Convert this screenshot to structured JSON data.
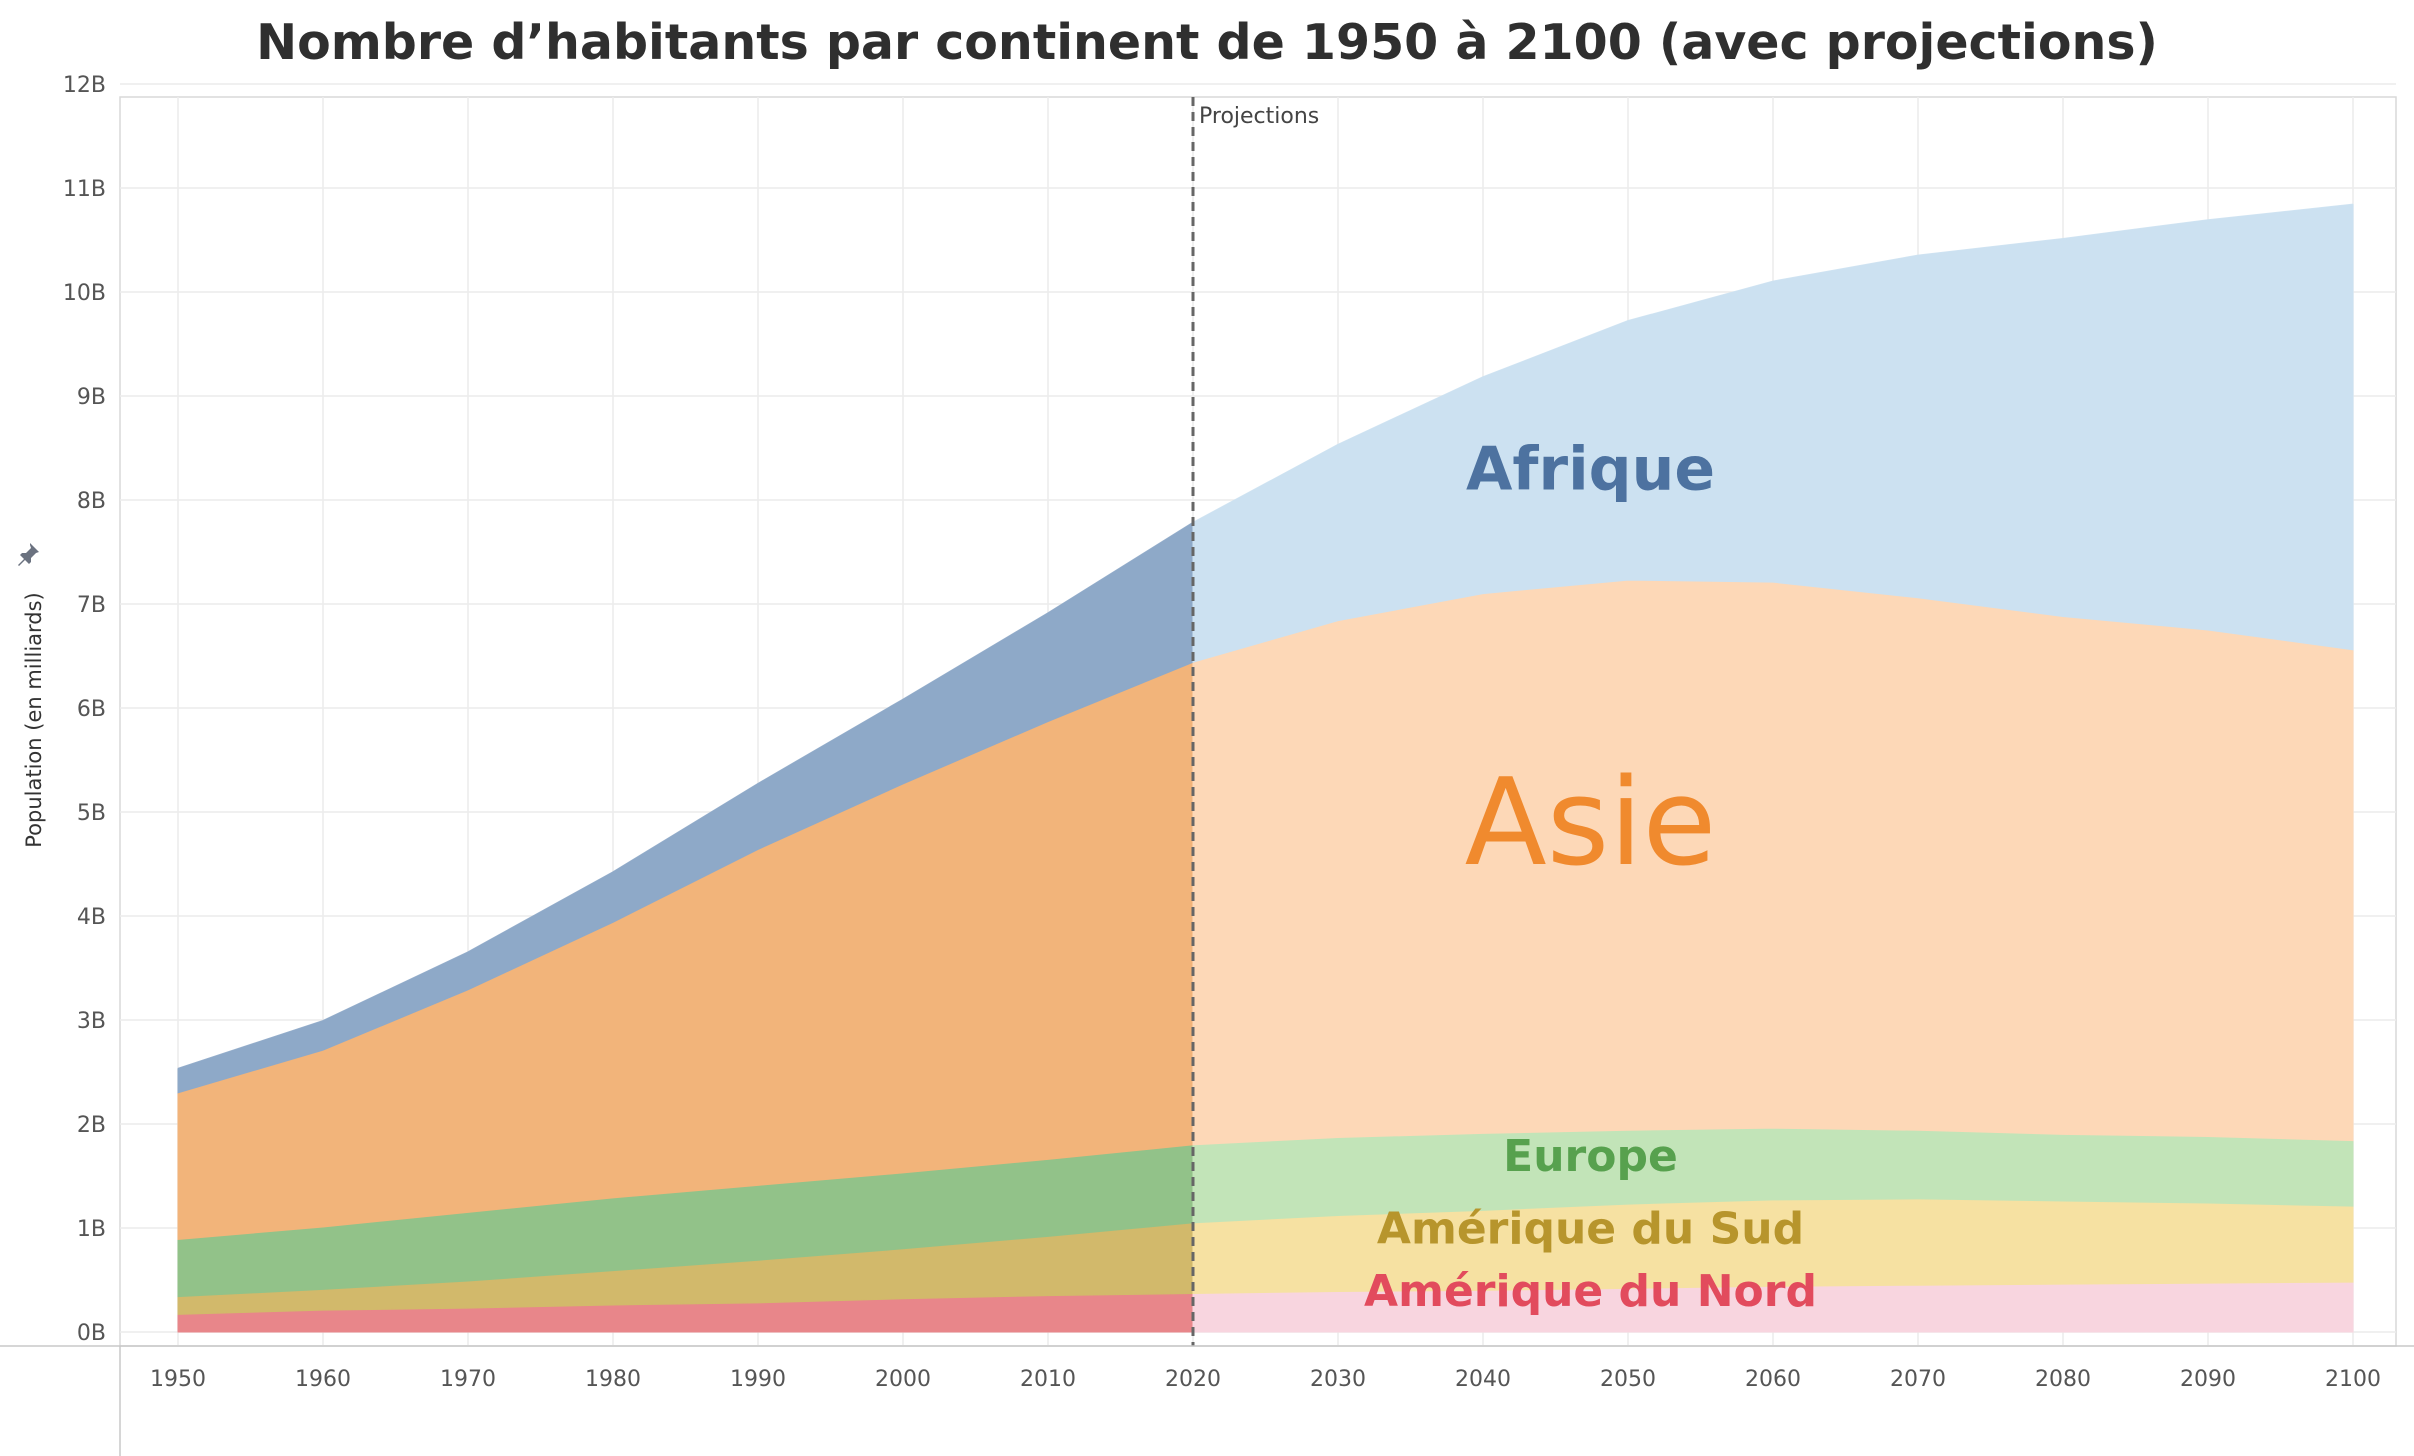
{
  "chart_data": {
    "type": "area",
    "stacked": true,
    "title": "Nombre d’habitants par continent de 1950 à 2100 (avec projections)",
    "xlabel": "",
    "ylabel": "Population (en milliards)",
    "xlim": [
      1950,
      2100
    ],
    "ylim": [
      0,
      12
    ],
    "x_ticks": [
      1950,
      1960,
      1970,
      1980,
      1990,
      2000,
      2010,
      2020,
      2030,
      2040,
      2050,
      2060,
      2070,
      2080,
      2090,
      2100
    ],
    "y_ticks": [
      "0B",
      "1B",
      "2B",
      "3B",
      "4B",
      "5B",
      "6B",
      "7B",
      "8B",
      "9B",
      "10B",
      "11B",
      "12B"
    ],
    "grid": true,
    "projection_start": 2020,
    "projection_label": "Projections",
    "x": [
      1950,
      1960,
      1970,
      1980,
      1990,
      2000,
      2010,
      2020,
      2030,
      2040,
      2050,
      2060,
      2070,
      2080,
      2090,
      2100
    ],
    "series": [
      {
        "name": "Amérique du Nord",
        "key": "amerique_nord",
        "color": "#e8868a",
        "projection_color": "#f8d5df",
        "values": [
          0.17,
          0.21,
          0.23,
          0.26,
          0.28,
          0.32,
          0.35,
          0.37,
          0.39,
          0.4,
          0.42,
          0.44,
          0.45,
          0.46,
          0.47,
          0.48
        ]
      },
      {
        "name": "Amérique du Sud",
        "key": "amerique_sud",
        "color": "#d2b96b",
        "projection_color": "#f6e1a2",
        "values": [
          0.17,
          0.2,
          0.26,
          0.33,
          0.41,
          0.48,
          0.57,
          0.68,
          0.73,
          0.77,
          0.81,
          0.83,
          0.83,
          0.8,
          0.77,
          0.73
        ]
      },
      {
        "name": "Europe",
        "key": "europe",
        "color": "#92c289",
        "projection_color": "#c2e4b8",
        "values": [
          0.55,
          0.6,
          0.66,
          0.7,
          0.72,
          0.73,
          0.74,
          0.75,
          0.75,
          0.74,
          0.71,
          0.69,
          0.66,
          0.64,
          0.64,
          0.63
        ]
      },
      {
        "name": "Asie",
        "key": "asie",
        "color": "#f2b47a",
        "projection_color": "#fdd8b7",
        "values": [
          1.41,
          1.7,
          2.14,
          2.65,
          3.23,
          3.74,
          4.21,
          4.64,
          4.97,
          5.19,
          5.29,
          5.25,
          5.12,
          4.98,
          4.87,
          4.72
        ]
      },
      {
        "name": "Afrique",
        "key": "afrique",
        "color": "#8ea9c8",
        "projection_color": "#cce1f1",
        "values": [
          0.23,
          0.28,
          0.36,
          0.48,
          0.63,
          0.81,
          1.04,
          1.34,
          1.69,
          2.08,
          2.49,
          2.89,
          3.29,
          3.63,
          3.94,
          4.28
        ]
      }
    ],
    "annotations": [
      {
        "text": "Afrique",
        "x": 2045,
        "y": 8.1,
        "color": "#4d72a0",
        "size": "medium"
      },
      {
        "text": "Asie",
        "x": 2045,
        "y": 4.5,
        "color": "#f08a2e",
        "size": "large"
      },
      {
        "text": "Europe",
        "x": 2045,
        "y": 1.55,
        "color": "#57a14e",
        "size": "small"
      },
      {
        "text": "Amérique du Sud",
        "x": 2045,
        "y": 0.85,
        "color": "#b7952c",
        "size": "small"
      },
      {
        "text": "Amérique du Nord",
        "x": 2045,
        "y": 0.25,
        "color": "#e24b5d",
        "size": "small"
      }
    ]
  }
}
